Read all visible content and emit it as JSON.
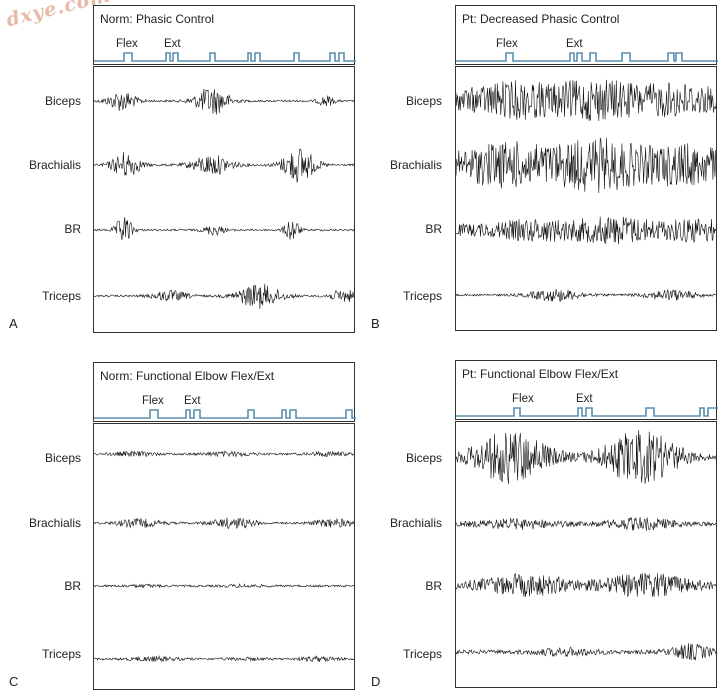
{
  "watermark": "dxye.com",
  "panels": [
    {
      "letter": "A",
      "title": "Norm: Phasic Control",
      "flex": "Flex",
      "ext": "Ext",
      "rows": [
        "Biceps",
        "Brachialis",
        "BR",
        "Triceps"
      ]
    },
    {
      "letter": "B",
      "title": "Pt: Decreased Phasic Control",
      "flex": "Flex",
      "ext": "Ext",
      "rows": [
        "Biceps",
        "Brachialis",
        "BR",
        "Triceps"
      ]
    },
    {
      "letter": "C",
      "title": "Norm: Functional Elbow Flex/Ext",
      "flex": "Flex",
      "ext": "Ext",
      "rows": [
        "Biceps",
        "Brachialis",
        "BR",
        "Triceps"
      ]
    },
    {
      "letter": "D",
      "title": "Pt: Functional Elbow Flex/Ext",
      "flex": "Flex",
      "ext": "Ext",
      "rows": [
        "Biceps",
        "Brachialis",
        "BR",
        "Triceps"
      ]
    }
  ],
  "colors": {
    "trace": "#111111",
    "timing": "#5b8fb0",
    "border": "#333333"
  }
}
